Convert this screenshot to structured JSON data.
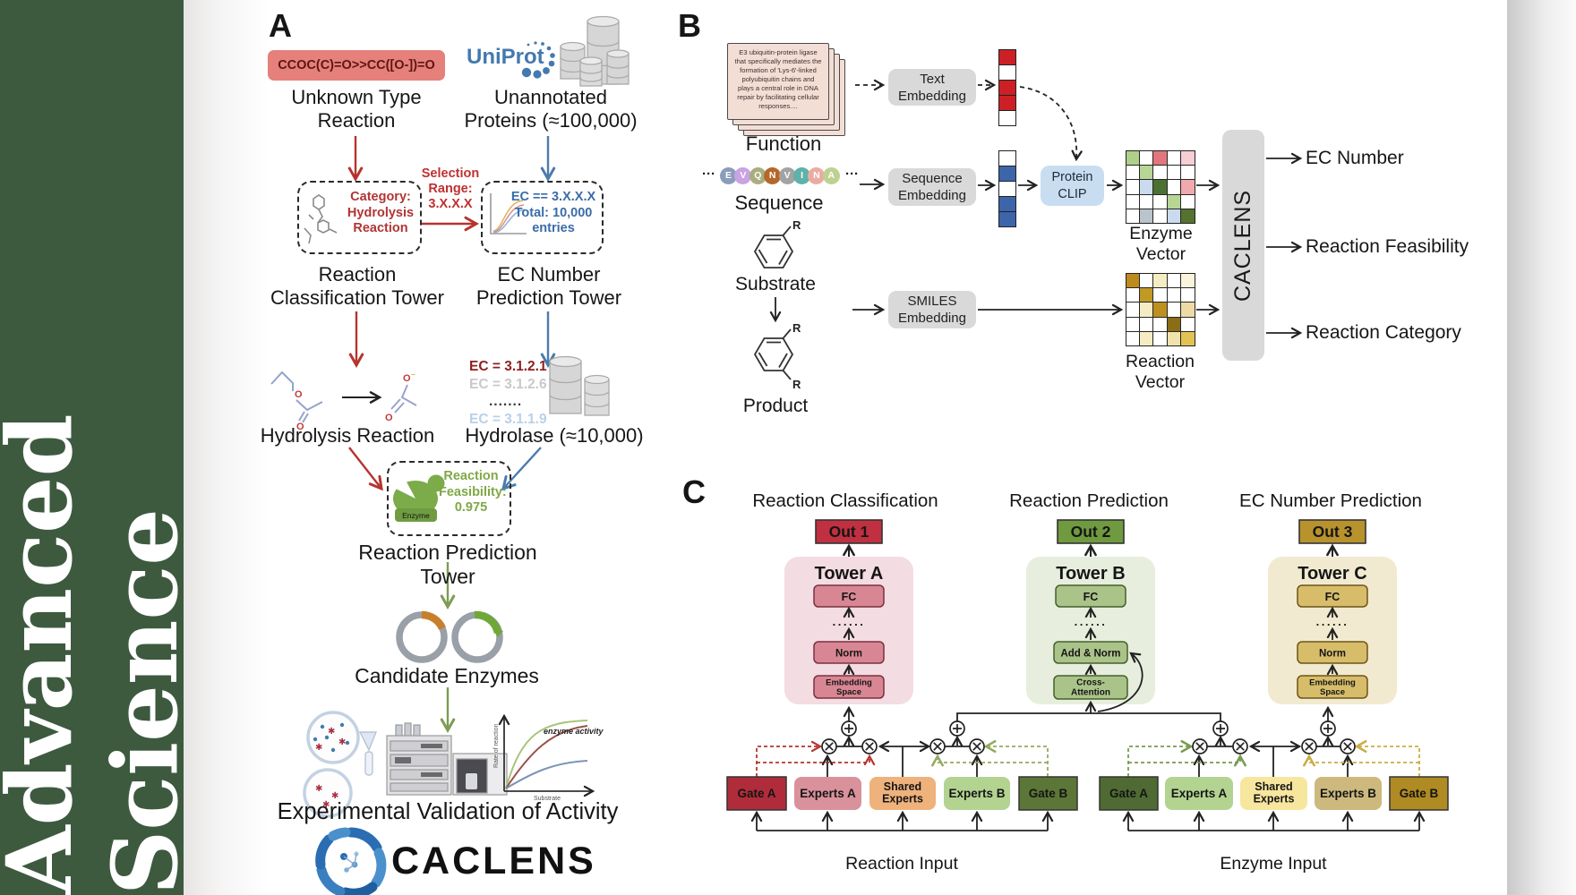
{
  "journal": {
    "name": "Advanced Science",
    "accent": "#3d5a3f"
  },
  "pa": {
    "label": "A",
    "smiles": "CCOC(C)=O>>CC([O-])=O",
    "uniprot": "UniProt",
    "unknown": "Unknown Type\nReaction",
    "unannotated": "Unannotated\nProteins (≈100,000)",
    "selection": "Selection\nRange:\n3.X.X.X",
    "category": "Category:\nHydrolysis\nReaction",
    "ecbox": "EC == 3.X.X.X\nTotal: 10,000\nentries",
    "classTower": "Reaction\nClassification Tower",
    "ecTower": "EC Number\nPrediction Tower",
    "ecList": {
      "l1": "EC = 3.1.2.1",
      "l2": "EC = 3.1.2.6",
      "l3": ".......",
      "l4": "EC = 3.1.1.9"
    },
    "hydReaction": "Hydrolysis Reaction",
    "hydrolase": "Hydrolase (≈10,000)",
    "enzyme": "Enzyme",
    "feasibility": "Reaction\nFeasibility:\n0.975",
    "predTower": "Reaction Prediction Tower",
    "candidates": "Candidate Enzymes",
    "plot": {
      "title": "enzyme activity",
      "ylabel": "Rate of reaction",
      "xlabel": "Substrate"
    },
    "validation": "Experimental Validation of Activity",
    "wordmark": "CACLENS"
  },
  "pb": {
    "label": "B",
    "card": "E3 ubiquitin-protein ligase that specifically mediates the formation of 'Lys-6'-linked polyubiquitin chains and plays a central role in DNA repair by facilitating cellular responses....",
    "function": "Function",
    "dotsL": "···",
    "dotsR": "···",
    "sequenceLabel": "Sequence",
    "seq": [
      {
        "letter": "E",
        "color": "#8b9dbb"
      },
      {
        "letter": "V",
        "color": "#c9a3e3"
      },
      {
        "letter": "Q",
        "color": "#a9ad80"
      },
      {
        "letter": "N",
        "color": "#b5672a"
      },
      {
        "letter": "V",
        "color": "#a3a3a3"
      },
      {
        "letter": "I",
        "color": "#5eb2aa"
      },
      {
        "letter": "N",
        "color": "#eaaba3"
      },
      {
        "letter": "A",
        "color": "#bdd291"
      }
    ],
    "textEmb": "Text\nEmbedding",
    "seqEmb": "Sequence\nEmbedding",
    "smilesEmb": "SMILES\nEmbedding",
    "clip": "Protein\nCLIP",
    "substrate": "Substrate",
    "product": "Product",
    "r": "R",
    "textVec": [
      "#cc2026",
      "#ffffff",
      "#cc2026",
      "#cc2026",
      "#ffffff"
    ],
    "seqVec": [
      "#ffffff",
      "#3d65a9",
      "#ffffff",
      "#3d65a9",
      "#3d65a9"
    ],
    "enzymeMat": [
      "#aed08b",
      "#ffffff",
      "#e2767c",
      "#ffffff",
      "#f6ced4",
      "#ffffff",
      "#b7d594",
      "#ffffff",
      "#ffffff",
      "#ffffff",
      "#ffffff",
      "#cadbf0",
      "#4c7031",
      "#ffffff",
      "#f0a9ac",
      "#ffffff",
      "#ffffff",
      "#ffffff",
      "#b7d594",
      "#ffffff",
      "#ffffff",
      "#b9c4cc",
      "#ffffff",
      "#cadbf0",
      "#55722f"
    ],
    "reactionMat": [
      "#bd8a1c",
      "#ffffff",
      "#f6ecc4",
      "#ffffff",
      "#fbf4dc",
      "#ffffff",
      "#c09a25",
      "#ffffff",
      "#ffffff",
      "#ffffff",
      "#ffffff",
      "#f6ecc4",
      "#bd9020",
      "#ffffff",
      "#eedaa4",
      "#ffffff",
      "#ffffff",
      "#ffffff",
      "#8a6d14",
      "#ffffff",
      "#ffffff",
      "#f6ecc4",
      "#ffffff",
      "#f0e2ac",
      "#e2c253"
    ],
    "enzymeVecLabel": "Enzyme Vector",
    "reactionVecLabel": "Reaction Vector",
    "bar": "CACLENS",
    "out1": "EC Number",
    "out2": "Reaction Feasibility",
    "out3": "Reaction Category"
  },
  "pc": {
    "label": "C",
    "t1": {
      "title": "Reaction Classification",
      "out": "Out 1",
      "tower": "Tower A",
      "fc": "FC",
      "dots": "......",
      "mid": "Norm",
      "bottom": "Embedding\nSpace"
    },
    "t2": {
      "title": "Reaction Prediction",
      "out": "Out 2",
      "tower": "Tower B",
      "fc": "FC",
      "dots": "......",
      "mid": "Add & Norm",
      "bottom": "Cross-\nAttention"
    },
    "t3": {
      "title": "EC Number Prediction",
      "out": "Out 3",
      "tower": "Tower C",
      "fc": "FC",
      "dots": "......",
      "mid": "Norm",
      "bottom": "Embedding\nSpace"
    },
    "left": {
      "gateA": "Gate A",
      "expertsA": "Experts A",
      "shared": "Shared\nExperts",
      "expertsB": "Experts B",
      "gateB": "Gate B",
      "input": "Reaction Input"
    },
    "right": {
      "gateA": "Gate A",
      "expertsA": "Experts A",
      "shared": "Shared\nExperts",
      "expertsB": "Experts B",
      "gateB": "Gate B",
      "input": "Enzyme Input"
    }
  }
}
